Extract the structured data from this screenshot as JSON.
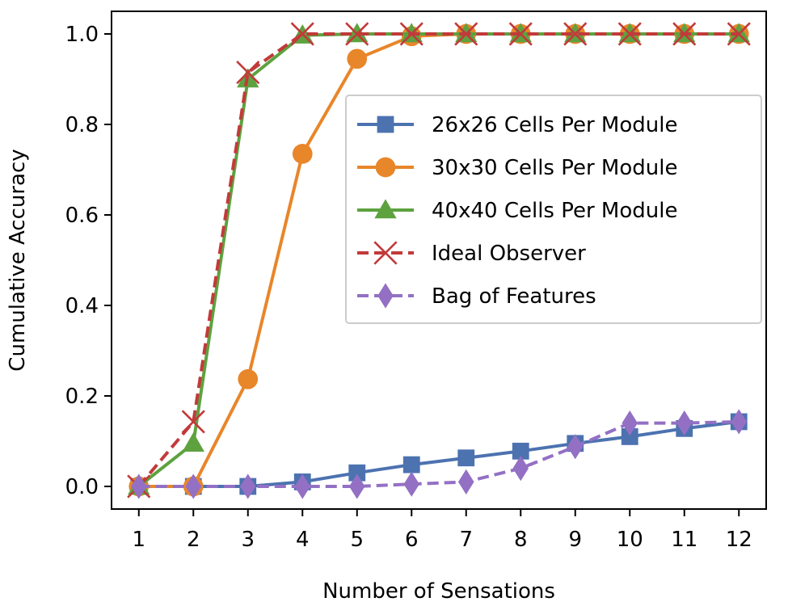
{
  "chart_data": {
    "type": "line",
    "title": "",
    "xlabel": "Number of Sensations",
    "ylabel": "Cumulative Accuracy",
    "x": [
      1,
      2,
      3,
      4,
      5,
      6,
      7,
      8,
      9,
      10,
      11,
      12
    ],
    "xlim": [
      0.5,
      12.5
    ],
    "ylim": [
      -0.05,
      1.05
    ],
    "xticks": [
      "1",
      "2",
      "3",
      "4",
      "5",
      "6",
      "7",
      "8",
      "9",
      "10",
      "11",
      "12"
    ],
    "yticks": [
      "0.0",
      "0.2",
      "0.4",
      "0.6",
      "0.8",
      "1.0"
    ],
    "grid": false,
    "legend_position": "center-right",
    "series": [
      {
        "name": "26x26 Cells Per Module",
        "color": "#4c72b0",
        "marker": "square",
        "linestyle": "solid",
        "values": [
          0.0,
          0.0,
          0.0,
          0.01,
          0.03,
          0.048,
          0.063,
          0.078,
          0.095,
          0.11,
          0.128,
          0.143
        ]
      },
      {
        "name": "30x30 Cells Per Module",
        "color": "#e8862a",
        "marker": "circle",
        "linestyle": "solid",
        "values": [
          0.0,
          0.0,
          0.237,
          0.735,
          0.945,
          0.995,
          1.0,
          1.0,
          1.0,
          1.0,
          1.0,
          1.0
        ]
      },
      {
        "name": "40x40 Cells Per Module",
        "color": "#5da23f",
        "marker": "triangle",
        "linestyle": "solid",
        "values": [
          0.0,
          0.095,
          0.9,
          0.997,
          1.0,
          1.0,
          1.0,
          1.0,
          1.0,
          1.0,
          1.0,
          1.0
        ]
      },
      {
        "name": "Ideal Observer",
        "color": "#c23a3a",
        "marker": "x",
        "linestyle": "dashed",
        "values": [
          0.0,
          0.143,
          0.915,
          1.0,
          1.0,
          1.0,
          1.0,
          1.0,
          1.0,
          1.0,
          1.0,
          1.0
        ]
      },
      {
        "name": "Bag of Features",
        "color": "#9370c4",
        "marker": "diamond",
        "linestyle": "dashed",
        "values": [
          0.0,
          0.0,
          0.0,
          0.0,
          0.0,
          0.005,
          0.01,
          0.04,
          0.088,
          0.14,
          0.14,
          0.143
        ]
      }
    ]
  }
}
